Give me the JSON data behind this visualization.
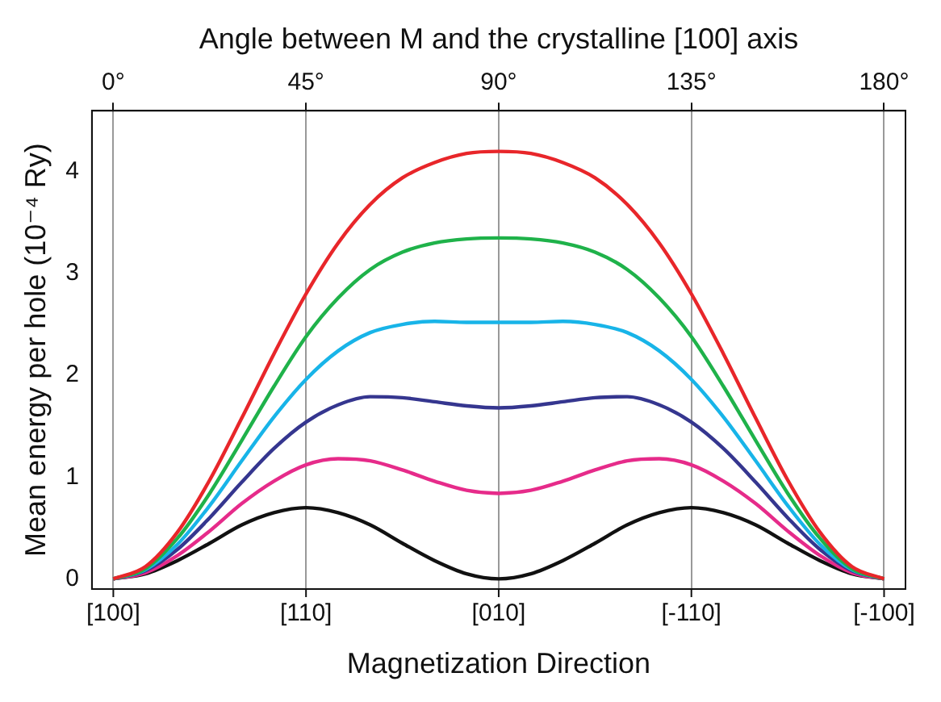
{
  "chart_data": {
    "type": "line",
    "xlabel": "Angle between M and the crystalline [100] axis",
    "ylabel": "Mean energy per hole (10⁻⁴ Ry)",
    "annotations": [
      {
        "text": "[100]",
        "x": 0
      },
      {
        "text": "[110]",
        "x": 45
      },
      {
        "text": "[010]",
        "x": 90
      },
      {
        "text": "[-110]",
        "x": 135
      },
      {
        "text": "[-100]",
        "x": 180
      },
      "Magnetization Direction"
    ],
    "x": [
      0,
      7.5,
      15,
      22.5,
      30,
      37.5,
      45,
      52.5,
      60,
      67.5,
      75,
      82.5,
      90,
      97.5,
      105,
      112.5,
      120,
      127.5,
      135,
      142.5,
      150,
      157.5,
      165,
      172.5,
      180
    ],
    "xlim": [
      -5,
      185
    ],
    "xticks": [
      {
        "value": 0,
        "label": "0°"
      },
      {
        "value": 45,
        "label": "45°"
      },
      {
        "value": 90,
        "label": "90°"
      },
      {
        "value": 135,
        "label": "135°"
      },
      {
        "value": 180,
        "label": "180°"
      }
    ],
    "series": [
      {
        "color": "#e8262a",
        "values": [
          0,
          0.12,
          0.46,
          0.97,
          1.58,
          2.21,
          2.8,
          3.3,
          3.68,
          3.94,
          4.09,
          4.18,
          4.2,
          4.18,
          4.09,
          3.94,
          3.68,
          3.3,
          2.8,
          2.21,
          1.58,
          0.97,
          0.46,
          0.12,
          0
        ]
      },
      {
        "color": "#1fb24a",
        "values": [
          0,
          0.1,
          0.4,
          0.84,
          1.36,
          1.89,
          2.38,
          2.76,
          3.04,
          3.21,
          3.3,
          3.34,
          3.35,
          3.34,
          3.3,
          3.21,
          3.04,
          2.76,
          2.38,
          1.89,
          1.36,
          0.84,
          0.4,
          0.1,
          0
        ]
      },
      {
        "color": "#18b4e8",
        "values": [
          0,
          0.09,
          0.34,
          0.72,
          1.16,
          1.59,
          1.96,
          2.24,
          2.42,
          2.5,
          2.53,
          2.52,
          2.52,
          2.52,
          2.53,
          2.5,
          2.42,
          2.24,
          1.96,
          1.59,
          1.16,
          0.72,
          0.34,
          0.09,
          0
        ]
      },
      {
        "color": "#35368f",
        "values": [
          0,
          0.08,
          0.29,
          0.6,
          0.95,
          1.28,
          1.54,
          1.71,
          1.79,
          1.78,
          1.74,
          1.7,
          1.68,
          1.7,
          1.74,
          1.78,
          1.79,
          1.71,
          1.54,
          1.28,
          0.95,
          0.6,
          0.29,
          0.08,
          0
        ]
      },
      {
        "color": "#e62b8a",
        "values": [
          0,
          0.06,
          0.23,
          0.47,
          0.74,
          0.96,
          1.12,
          1.18,
          1.16,
          1.07,
          0.96,
          0.87,
          0.84,
          0.87,
          0.96,
          1.07,
          1.16,
          1.18,
          1.12,
          0.96,
          0.74,
          0.47,
          0.23,
          0.06,
          0
        ]
      },
      {
        "color": "#111111",
        "values": [
          0,
          0.05,
          0.18,
          0.35,
          0.53,
          0.65,
          0.7,
          0.65,
          0.53,
          0.35,
          0.18,
          0.05,
          0,
          0.05,
          0.18,
          0.35,
          0.53,
          0.65,
          0.7,
          0.65,
          0.53,
          0.35,
          0.18,
          0.05,
          0
        ]
      }
    ],
    "ylim": [
      -0.1,
      4.6
    ],
    "yticks": [
      0,
      1,
      2,
      3,
      4
    ],
    "grid": "x",
    "legend": false,
    "marker": "none",
    "line_style": "solid"
  }
}
